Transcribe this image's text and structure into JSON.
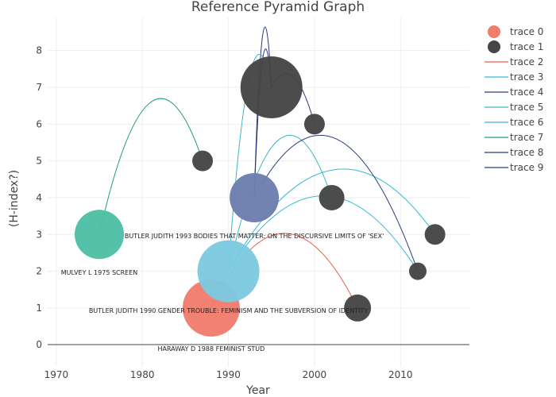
{
  "chart_data": {
    "type": "scatter",
    "title": "Reference Pyramid Graph",
    "xlabel": "Year",
    "ylabel": "(H-index?)",
    "xlim": [
      1969,
      2018
    ],
    "ylim": [
      -0.6,
      8.9
    ],
    "x_ticks": [
      1970,
      1980,
      1990,
      2000,
      2010
    ],
    "y_ticks": [
      0,
      1,
      2,
      3,
      4,
      5,
      6,
      7,
      8
    ],
    "grid": true,
    "legend_position": "top-right",
    "bubbles": [
      {
        "series": "trace 0",
        "x": 1988,
        "y": 1,
        "size": 36,
        "color": "#f07c6c"
      },
      {
        "series": "trace 0",
        "x": 1975,
        "y": 3,
        "size": 31,
        "color": "#4dbfa5"
      },
      {
        "series": "trace 0",
        "x": 1990,
        "y": 2,
        "size": 39,
        "color": "#7ccae0"
      },
      {
        "series": "trace 0",
        "x": 1993,
        "y": 4,
        "size": 31,
        "color": "#6d7eae"
      },
      {
        "series": "trace 1",
        "x": 1995,
        "y": 7,
        "size": 39,
        "color": "#454545"
      },
      {
        "series": "trace 1",
        "x": 2000,
        "y": 6,
        "size": 13,
        "color": "#454545"
      },
      {
        "series": "trace 1",
        "x": 1987,
        "y": 5,
        "size": 13,
        "color": "#454545"
      },
      {
        "series": "trace 1",
        "x": 2002,
        "y": 4,
        "size": 16,
        "color": "#454545"
      },
      {
        "series": "trace 1",
        "x": 2014,
        "y": 3,
        "size": 13,
        "color": "#454545"
      },
      {
        "series": "trace 1",
        "x": 2012,
        "y": 2,
        "size": 11,
        "color": "#454545"
      },
      {
        "series": "trace 1",
        "x": 2005,
        "y": 1,
        "size": 17,
        "color": "#454545"
      }
    ],
    "arcs": [
      {
        "series": "trace 2",
        "from": [
          1988,
          1
        ],
        "to": [
          2005,
          1
        ],
        "peak": 3.03,
        "color": "#e8604d"
      },
      {
        "series": "trace 3",
        "from": [
          1990,
          2
        ],
        "to": [
          2012,
          2
        ],
        "peak": 4.05,
        "color": "#36b8d8"
      },
      {
        "series": "trace 3",
        "from": [
          1990,
          2
        ],
        "to": [
          2014,
          3
        ],
        "peak": 4.75,
        "color": "#36b8d8"
      },
      {
        "series": "trace 4",
        "from": [
          1993,
          4
        ],
        "to": [
          1995,
          7
        ],
        "peak": 8.45,
        "color": "#2b3a7a"
      },
      {
        "series": "trace 4",
        "from": [
          1995,
          7
        ],
        "to": [
          2000,
          6
        ],
        "peak": 7.3,
        "color": "#2b3a7a"
      },
      {
        "series": "trace 5",
        "from": [
          1990,
          2
        ],
        "to": [
          2002,
          4
        ],
        "peak": 5.6,
        "color": "#3ab5c8"
      },
      {
        "series": "trace 6",
        "from": [
          1990,
          2
        ],
        "to": [
          1995,
          7
        ],
        "peak": 7.35,
        "color": "#3ab5c8"
      },
      {
        "series": "trace 7",
        "from": [
          1975,
          3
        ],
        "to": [
          1987,
          5
        ],
        "peak": 6.6,
        "color": "#1d9a80"
      },
      {
        "series": "trace 8",
        "from": [
          1993,
          4
        ],
        "to": [
          2012,
          2
        ],
        "peak": 5.6,
        "color": "#2b3a7a"
      },
      {
        "series": "trace 9",
        "from": [
          1993,
          4
        ],
        "to": [
          1995,
          7
        ],
        "peak": 7.8,
        "color": "#2b3a7a"
      }
    ],
    "annotations": [
      {
        "text": "BUTLER JUDITH 1993 BODIES THAT MATTER: ON THE DISCURSIVE LIMITS OF 'SEX'",
        "x": 1993,
        "y": 2.9
      },
      {
        "text": "MULVEY L 1975 SCREEN",
        "x": 1975,
        "y": 1.9
      },
      {
        "text": "BUTLER JUDITH 1990 GENDER TROUBLE: FEMINISM AND THE SUBVERSION OF IDENTITY",
        "x": 1990,
        "y": 0.87
      },
      {
        "text": "HARAWAY D 1988 FEMINIST STUD",
        "x": 1988,
        "y": -0.17
      }
    ],
    "legend": [
      {
        "name": "trace 0",
        "kind": "marker",
        "color": "#f07c6c"
      },
      {
        "name": "trace 1",
        "kind": "marker",
        "color": "#454545"
      },
      {
        "name": "trace 2",
        "kind": "line",
        "color": "#e8604d"
      },
      {
        "name": "trace 3",
        "kind": "line",
        "color": "#36b8d8"
      },
      {
        "name": "trace 4",
        "kind": "line",
        "color": "#2b3a7a"
      },
      {
        "name": "trace 5",
        "kind": "line",
        "color": "#3ab5c8"
      },
      {
        "name": "trace 6",
        "kind": "line",
        "color": "#3ab5c8"
      },
      {
        "name": "trace 7",
        "kind": "line",
        "color": "#1d9a80"
      },
      {
        "name": "trace 8",
        "kind": "line",
        "color": "#2b3a7a"
      },
      {
        "name": "trace 9",
        "kind": "line",
        "color": "#2b3a7a"
      }
    ]
  }
}
